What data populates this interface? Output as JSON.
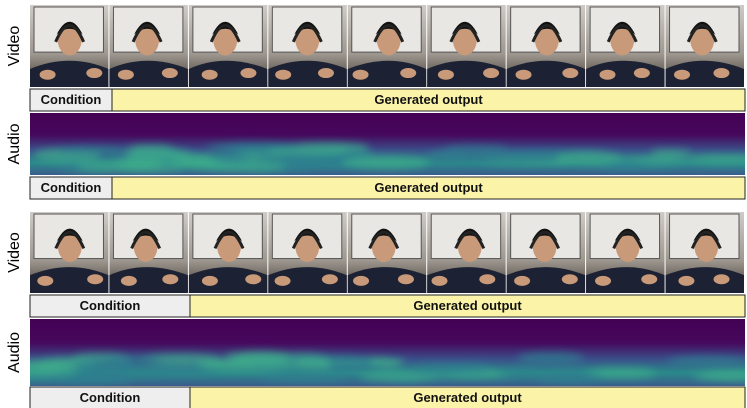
{
  "panels": [
    {
      "video_label": "Video",
      "audio_label": "Audio",
      "video_bar": {
        "condition": "Condition",
        "generated": "Generated output"
      },
      "audio_bar": {
        "condition": "Condition",
        "generated": "Generated output"
      }
    },
    {
      "video_label": "Video",
      "audio_label": "Audio",
      "video_bar": {
        "condition": "Condition",
        "generated": "Generated output"
      },
      "audio_bar": {
        "condition": "Condition",
        "generated": "Generated output"
      }
    }
  ]
}
